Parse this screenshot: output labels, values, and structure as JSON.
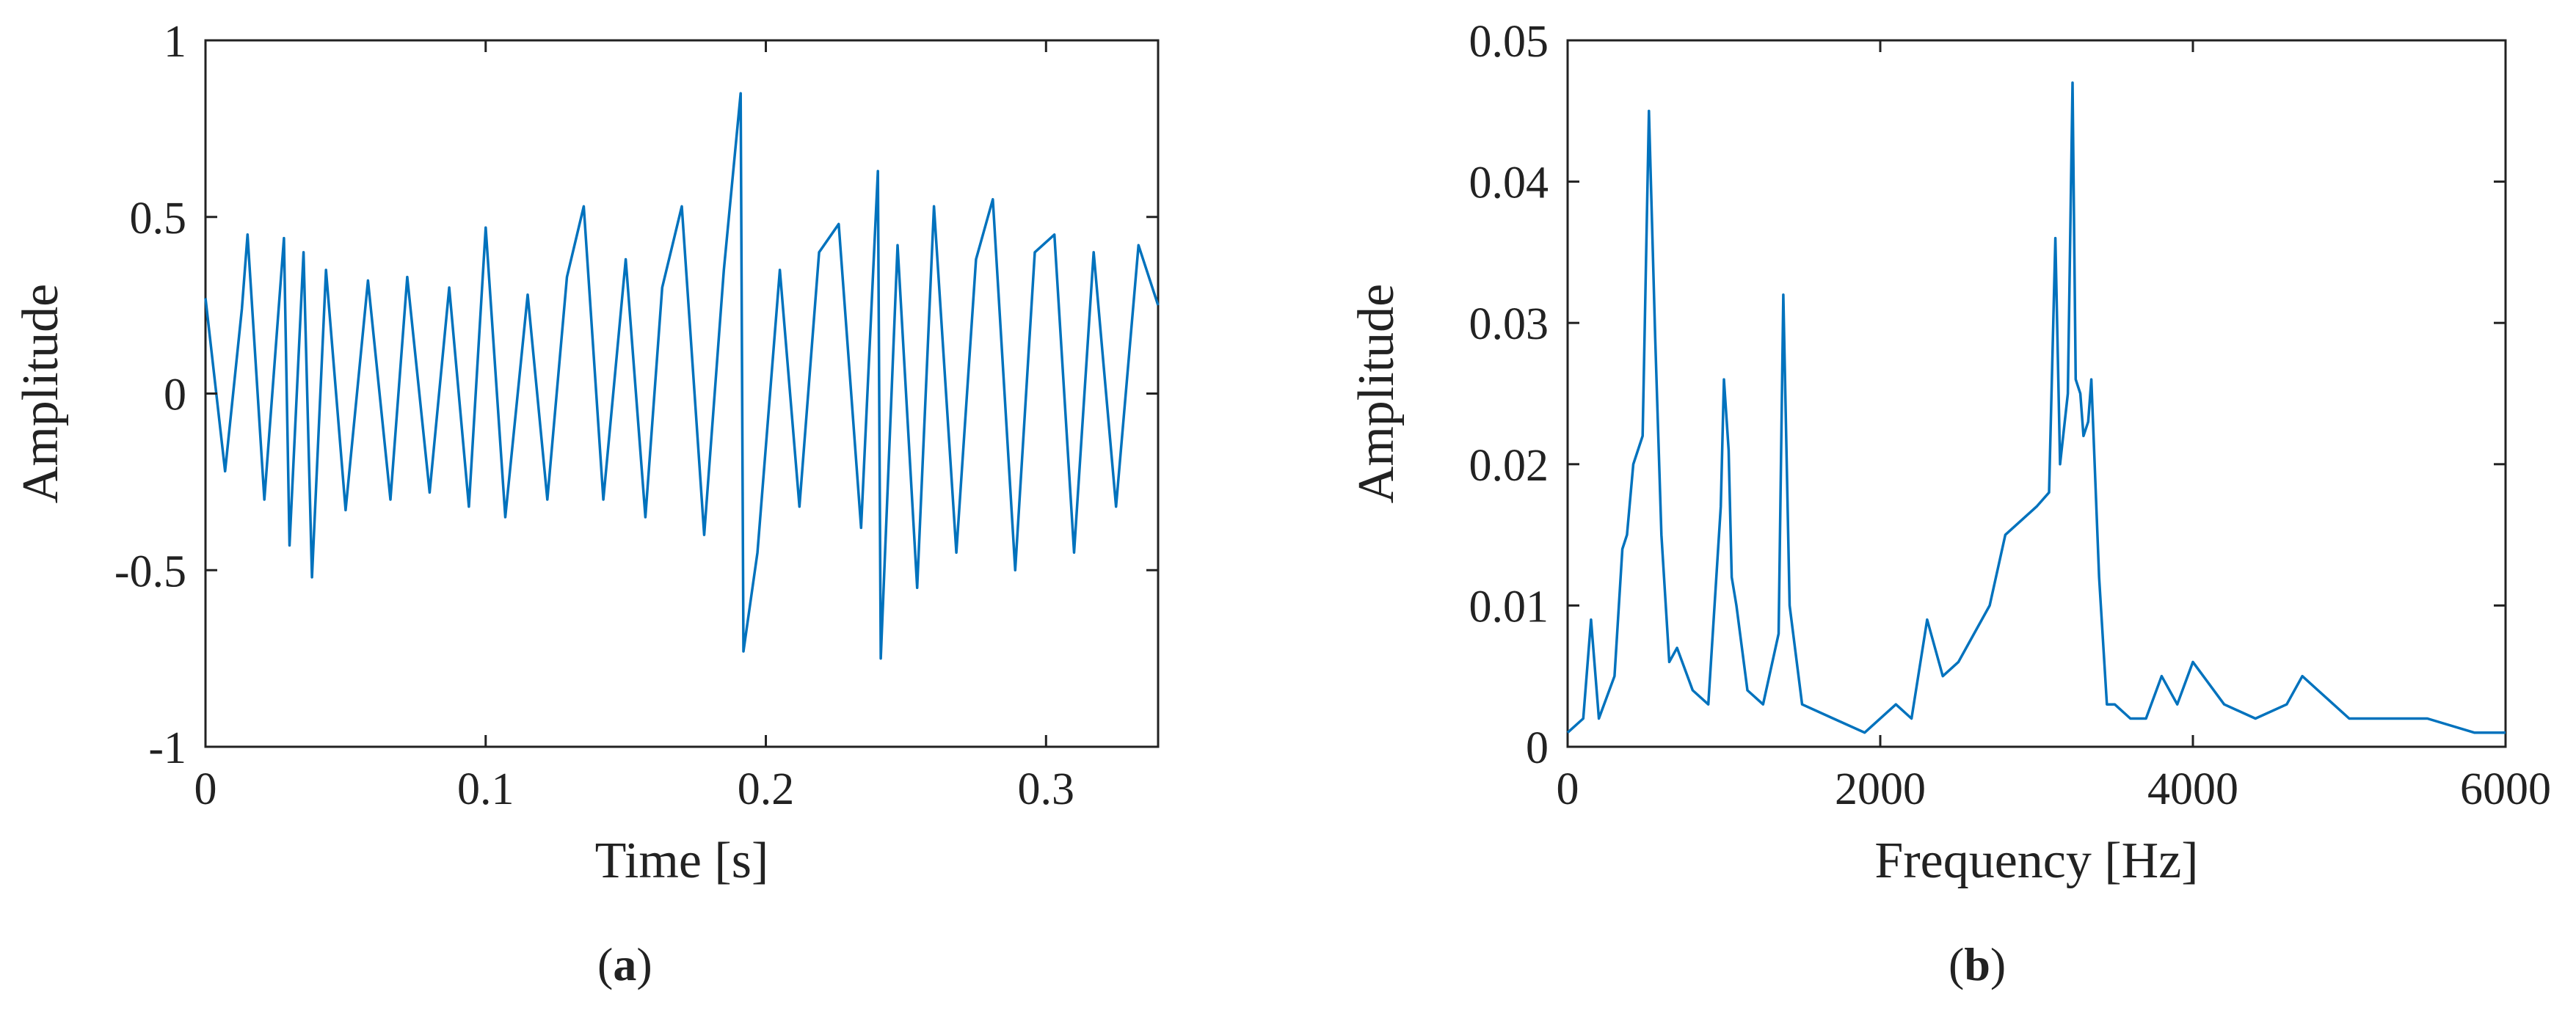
{
  "chart_data": [
    {
      "type": "line",
      "panel_label": "a",
      "title": "",
      "xlabel": "Time [s]",
      "ylabel": "Amplitude",
      "xlim": [
        0,
        0.34
      ],
      "ylim": [
        -1,
        1
      ],
      "xticks": [
        0,
        0.1,
        0.2,
        0.3
      ],
      "xtick_labels": [
        "0",
        "0.1",
        "0.2",
        "0.3"
      ],
      "yticks": [
        1,
        0.5,
        0,
        -0.5,
        -1
      ],
      "ytick_labels": [
        "1",
        "0.5",
        "0",
        "-0.5",
        "-1"
      ],
      "grid": false,
      "color": "#0072BD",
      "series": [
        {
          "x": [
            0,
            0.007,
            0.013,
            0.015,
            0.021,
            0.028,
            0.03,
            0.035,
            0.038,
            0.043,
            0.05,
            0.058,
            0.066,
            0.072,
            0.08,
            0.087,
            0.094,
            0.1,
            0.107,
            0.115,
            0.122,
            0.129,
            0.135,
            0.142,
            0.15,
            0.157,
            0.163,
            0.17,
            0.178,
            0.185,
            0.191,
            0.192,
            0.197,
            0.205,
            0.212,
            0.219,
            0.226,
            0.234,
            0.24,
            0.241,
            0.247,
            0.254,
            0.26,
            0.268,
            0.275,
            0.281,
            0.289,
            0.296,
            0.303,
            0.31,
            0.317,
            0.325,
            0.333,
            0.34
          ],
          "y": [
            0.27,
            -0.22,
            0.24,
            0.45,
            -0.3,
            0.44,
            -0.43,
            0.4,
            -0.52,
            0.35,
            -0.33,
            0.32,
            -0.3,
            0.33,
            -0.28,
            0.3,
            -0.32,
            0.47,
            -0.35,
            0.28,
            -0.3,
            0.33,
            0.53,
            -0.3,
            0.38,
            -0.35,
            0.3,
            0.53,
            -0.4,
            0.35,
            0.85,
            -0.73,
            -0.45,
            0.35,
            -0.32,
            0.4,
            0.48,
            -0.38,
            0.63,
            -0.75,
            0.42,
            -0.55,
            0.53,
            -0.45,
            0.38,
            0.55,
            -0.5,
            0.4,
            0.45,
            -0.45,
            0.4,
            -0.32,
            0.42,
            0.25
          ]
        }
      ]
    },
    {
      "type": "line",
      "panel_label": "b",
      "title": "",
      "xlabel": "Frequency [Hz]",
      "ylabel": "Amplitude",
      "xlim": [
        0,
        6000
      ],
      "ylim": [
        0,
        0.05
      ],
      "xticks": [
        0,
        2000,
        4000,
        6000
      ],
      "xtick_labels": [
        "0",
        "2000",
        "4000",
        "6000"
      ],
      "yticks": [
        0.05,
        0.04,
        0.03,
        0.02,
        0.01,
        0
      ],
      "ytick_labels": [
        "0.05",
        "0.04",
        "0.03",
        "0.02",
        "0.01",
        "0"
      ],
      "grid": false,
      "color": "#0072BD",
      "series": [
        {
          "x": [
            0,
            100,
            150,
            200,
            300,
            350,
            380,
            420,
            480,
            520,
            560,
            600,
            650,
            700,
            800,
            900,
            980,
            1000,
            1030,
            1050,
            1080,
            1150,
            1250,
            1350,
            1380,
            1420,
            1500,
            1700,
            1900,
            2100,
            2200,
            2300,
            2400,
            2500,
            2600,
            2700,
            2800,
            2900,
            3000,
            3080,
            3120,
            3150,
            3200,
            3230,
            3250,
            3280,
            3300,
            3330,
            3350,
            3400,
            3450,
            3500,
            3600,
            3700,
            3800,
            3900,
            4000,
            4200,
            4400,
            4600,
            4700,
            4800,
            5000,
            5200,
            5500,
            5800,
            6000
          ],
          "y": [
            0.001,
            0.002,
            0.009,
            0.002,
            0.005,
            0.014,
            0.015,
            0.02,
            0.022,
            0.045,
            0.029,
            0.015,
            0.006,
            0.007,
            0.004,
            0.003,
            0.017,
            0.026,
            0.021,
            0.012,
            0.01,
            0.004,
            0.003,
            0.008,
            0.032,
            0.01,
            0.003,
            0.002,
            0.001,
            0.003,
            0.002,
            0.009,
            0.005,
            0.006,
            0.008,
            0.01,
            0.015,
            0.016,
            0.017,
            0.018,
            0.036,
            0.02,
            0.025,
            0.047,
            0.026,
            0.025,
            0.022,
            0.023,
            0.026,
            0.012,
            0.003,
            0.003,
            0.002,
            0.002,
            0.005,
            0.003,
            0.006,
            0.003,
            0.002,
            0.003,
            0.005,
            0.004,
            0.002,
            0.002,
            0.002,
            0.001,
            0.001
          ]
        }
      ]
    }
  ]
}
